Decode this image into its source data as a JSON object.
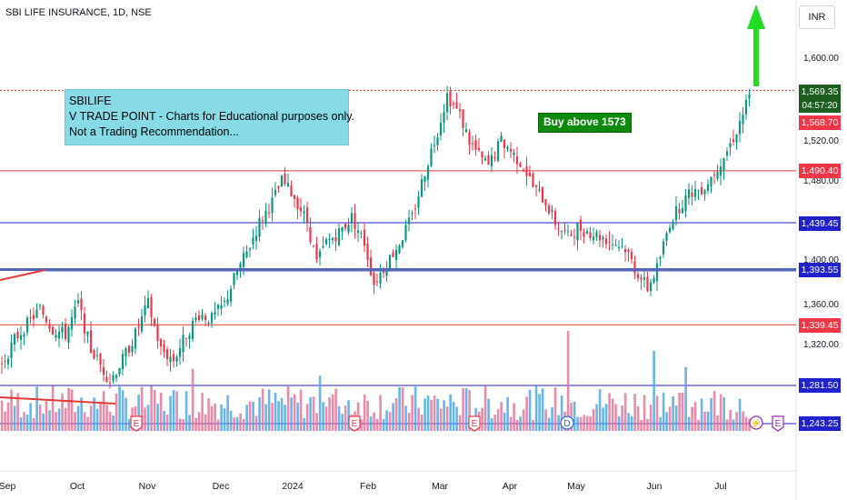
{
  "chart_title": "SBI LIFE INSURANCE, 1D, NSE",
  "currency": "INR",
  "note": {
    "line1": "SBILIFE",
    "line2": "V TRADE POINT - Charts for Educational purposes only.",
    "line3": "Not a Trading Recommendation..."
  },
  "buy_label": "Buy above 1573",
  "timer": "04:57:20",
  "colors": {
    "up": "#089981",
    "down": "#f23645",
    "volume_up": "#4ea8e8",
    "volume_down": "#e8779a",
    "arrow": "#22dd22",
    "blue_line": "#2222cc",
    "red_line": "#e53935"
  },
  "y_ticks": [
    "1,600.00",
    "1,520.00",
    "1,480.00",
    "1,400.00",
    "1,360.00",
    "1,320.00"
  ],
  "x_ticks": [
    "Sep",
    "Oct",
    "Nov",
    "Dec",
    "2024",
    "Feb",
    "Mar",
    "Apr",
    "May",
    "Jun",
    "Jul"
  ],
  "price_tags": [
    {
      "label": "1,569.35",
      "color": "#1b5e20",
      "value": 1569.35
    },
    {
      "label": "1,568.70",
      "color": "#f23645",
      "value": 1568.7
    },
    {
      "label": "1,490.40",
      "color": "#f23645",
      "value": 1490.4
    },
    {
      "label": "1,439.45",
      "color": "#2222cc",
      "value": 1439.45
    },
    {
      "label": "1,393.55",
      "color": "#2222cc",
      "value": 1393.55
    },
    {
      "label": "1,339.45",
      "color": "#f23645",
      "value": 1339.45
    },
    {
      "label": "1,281.50",
      "color": "#2222cc",
      "value": 1281.5
    },
    {
      "label": "1,243.25",
      "color": "#2222cc",
      "value": 1243.25
    }
  ],
  "events": [
    "E",
    "E",
    "E",
    "D",
    "E",
    "E"
  ],
  "chart_data": {
    "type": "candlestick",
    "title": "SBI LIFE INSURANCE, 1D, NSE",
    "currency": "INR",
    "ylim": [
      1232,
      1640
    ],
    "x": [
      "Sep",
      "Oct",
      "Nov",
      "Dec",
      "2024",
      "Feb",
      "Mar",
      "Apr",
      "May",
      "Jun",
      "Jul"
    ],
    "horizontal_levels": [
      1569.35,
      1490.4,
      1439.45,
      1393.55,
      1339.45,
      1281.5,
      1243.25
    ],
    "close_path": [
      [
        0,
        1300
      ],
      [
        4,
        1325
      ],
      [
        8,
        1340
      ],
      [
        12,
        1355
      ],
      [
        16,
        1335
      ],
      [
        20,
        1330
      ],
      [
        24,
        1360
      ],
      [
        28,
        1315
      ],
      [
        31,
        1300
      ],
      [
        34,
        1285
      ],
      [
        38,
        1305
      ],
      [
        42,
        1330
      ],
      [
        46,
        1360
      ],
      [
        50,
        1315
      ],
      [
        54,
        1305
      ],
      [
        58,
        1330
      ],
      [
        62,
        1350
      ],
      [
        66,
        1345
      ],
      [
        70,
        1360
      ],
      [
        73,
        1385
      ],
      [
        77,
        1410
      ],
      [
        81,
        1440
      ],
      [
        85,
        1460
      ],
      [
        88,
        1480
      ],
      [
        92,
        1465
      ],
      [
        96,
        1440
      ],
      [
        99,
        1400
      ],
      [
        102,
        1420
      ],
      [
        106,
        1430
      ],
      [
        110,
        1445
      ],
      [
        114,
        1420
      ],
      [
        117,
        1380
      ],
      [
        121,
        1400
      ],
      [
        125,
        1420
      ],
      [
        129,
        1445
      ],
      [
        133,
        1490
      ],
      [
        137,
        1530
      ],
      [
        140,
        1565
      ],
      [
        144,
        1545
      ],
      [
        147,
        1520
      ],
      [
        150,
        1505
      ],
      [
        153,
        1495
      ],
      [
        157,
        1520
      ],
      [
        160,
        1510
      ],
      [
        164,
        1495
      ],
      [
        167,
        1475
      ],
      [
        171,
        1460
      ],
      [
        174,
        1440
      ],
      [
        178,
        1425
      ],
      [
        181,
        1435
      ],
      [
        185,
        1430
      ],
      [
        189,
        1425
      ],
      [
        192,
        1420
      ],
      [
        196,
        1415
      ],
      [
        199,
        1395
      ],
      [
        203,
        1375
      ],
      [
        206,
        1395
      ],
      [
        210,
        1440
      ],
      [
        214,
        1460
      ],
      [
        217,
        1470
      ],
      [
        221,
        1475
      ],
      [
        224,
        1490
      ],
      [
        228,
        1510
      ],
      [
        231,
        1530
      ],
      [
        234,
        1555
      ],
      [
        236,
        1569
      ]
    ]
  }
}
